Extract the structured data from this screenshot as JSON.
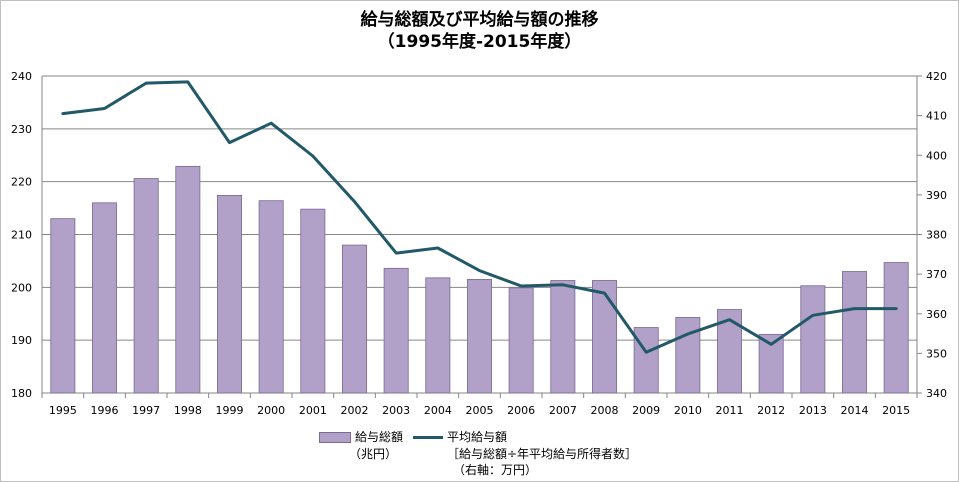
{
  "chart_data": {
    "type": "bar+line",
    "title": "給与総額及び平均給与額の推移",
    "subtitle": "（1995年度-2015年度）",
    "categories": [
      "1995",
      "1996",
      "1997",
      "1998",
      "1999",
      "2000",
      "2001",
      "2002",
      "2003",
      "2004",
      "2005",
      "2006",
      "2007",
      "2008",
      "2009",
      "2010",
      "2011",
      "2012",
      "2013",
      "2014",
      "2015"
    ],
    "series": [
      {
        "name": "給与総額",
        "type": "bar",
        "axis": "left",
        "unit": "（兆円）",
        "values": [
          213.0,
          216.0,
          220.6,
          222.9,
          217.4,
          216.4,
          214.8,
          208.0,
          203.6,
          201.8,
          201.5,
          199.9,
          201.3,
          201.3,
          192.4,
          194.3,
          195.8,
          191.1,
          200.3,
          203.0,
          204.7
        ]
      },
      {
        "name": "平均給与額",
        "type": "line",
        "axis": "right",
        "note": "［給与総額÷年平均給与所得者数］",
        "unit": "（右軸：万円）",
        "values": [
          410.5,
          411.8,
          418.2,
          418.5,
          403.2,
          408.1,
          399.8,
          388.3,
          375.3,
          376.6,
          370.9,
          367.0,
          367.3,
          365.2,
          350.3,
          354.9,
          358.5,
          352.3,
          359.6,
          361.3,
          361.3
        ]
      }
    ],
    "y_left": {
      "min": 180,
      "max": 240,
      "ticks": [
        180,
        190,
        200,
        210,
        220,
        230,
        240
      ]
    },
    "y_right": {
      "min": 340,
      "max": 420,
      "ticks": [
        340,
        350,
        360,
        370,
        380,
        390,
        400,
        410,
        420
      ]
    },
    "grid": true,
    "legend_position": "bottom",
    "colors": {
      "bar": "#b1a0c7",
      "bar_edge": "#7a6a94",
      "line": "#215968",
      "grid": "#868686",
      "axis": "#868686"
    }
  }
}
